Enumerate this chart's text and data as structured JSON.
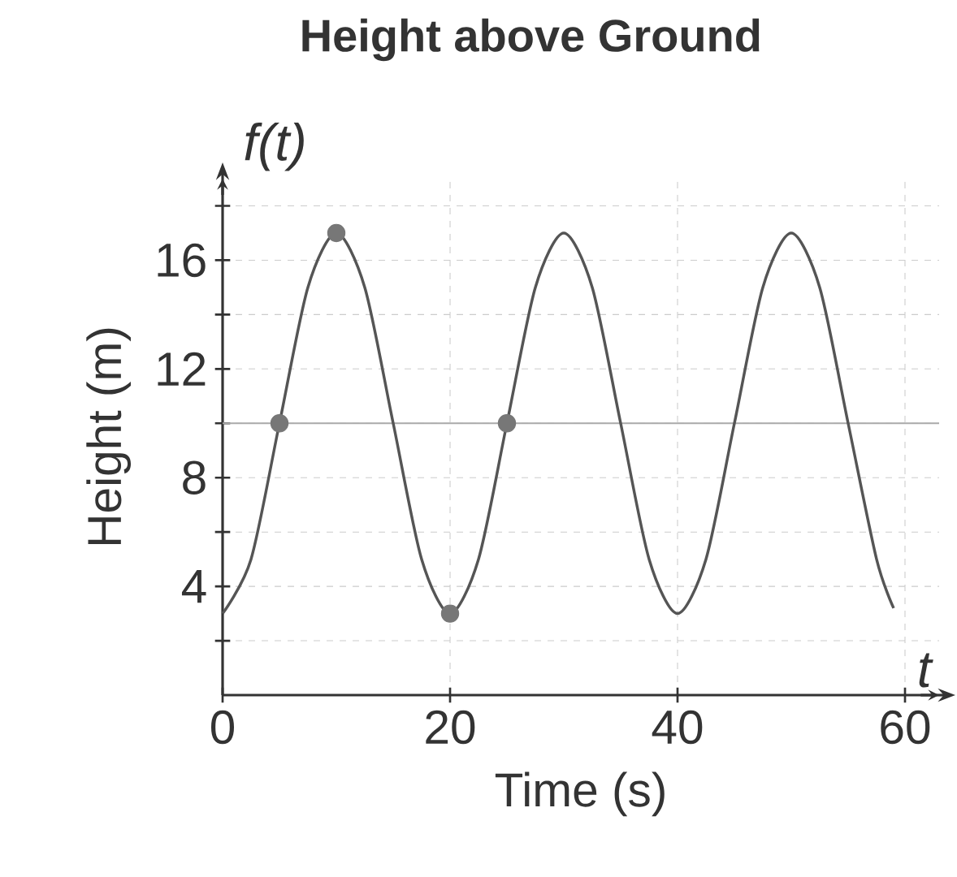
{
  "chart_data": {
    "type": "line",
    "title": "Height above Ground",
    "xlabel": "Time (s)",
    "ylabel": "Height (m)",
    "annotations": [
      "f(t)",
      "t"
    ],
    "x": [
      0,
      2.5,
      5,
      7.5,
      10,
      12.5,
      15,
      17.5,
      20,
      22.5,
      25,
      27.5,
      30,
      32.5,
      35,
      37.5,
      40,
      42.5,
      45,
      47.5,
      50,
      52.5,
      55,
      57.5,
      59
    ],
    "series": [
      {
        "color": "#555555",
        "values": [
          3,
          5,
          10,
          15,
          17,
          15,
          10,
          5,
          3,
          5,
          10,
          15,
          17,
          15,
          10,
          5,
          3,
          5,
          10,
          15,
          17,
          15,
          10,
          5,
          3.2
        ]
      },
      {
        "type": "scatter",
        "marker": "circle",
        "color": "#777777",
        "x": [
          5,
          10,
          20,
          25
        ],
        "values": [
          10,
          17,
          3,
          10
        ]
      }
    ],
    "ref_lines": [
      {
        "axis": "y",
        "value": 10,
        "color": "#aaaaaa"
      }
    ],
    "xlim": [
      0,
      63
    ],
    "ylim": [
      0,
      19
    ],
    "xticks": [
      0,
      20,
      40,
      60
    ],
    "yticks": [
      {
        "value": 2,
        "label": null
      },
      4,
      {
        "value": 6,
        "label": null
      },
      8,
      {
        "value": 10,
        "label": null
      },
      12,
      {
        "value": 14,
        "label": null
      },
      16,
      {
        "value": 18,
        "label": null
      }
    ],
    "grid": true
  }
}
